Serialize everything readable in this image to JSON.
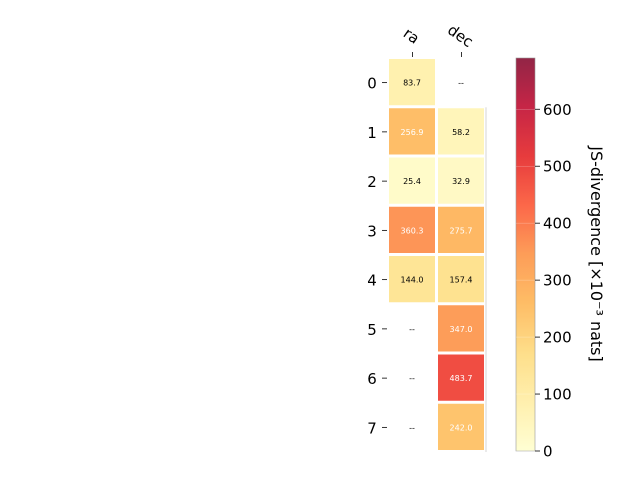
{
  "chart_data": {
    "type": "heatmap",
    "columns": [
      "ra",
      "dec"
    ],
    "rows": [
      "0",
      "1",
      "2",
      "3",
      "4",
      "5",
      "6",
      "7"
    ],
    "values": [
      [
        83.7,
        null
      ],
      [
        256.9,
        58.2
      ],
      [
        25.4,
        32.9
      ],
      [
        360.3,
        275.7
      ],
      [
        144.0,
        157.4
      ],
      [
        null,
        347.0
      ],
      [
        null,
        483.7
      ],
      [
        null,
        242.0
      ]
    ],
    "cell_labels": [
      [
        "83.7",
        "--"
      ],
      [
        "256.9",
        "58.2"
      ],
      [
        "25.4",
        "32.9"
      ],
      [
        "360.3",
        "275.7"
      ],
      [
        "144.0",
        "157.4"
      ],
      [
        "--",
        "347.0"
      ],
      [
        "--",
        "483.7"
      ],
      [
        "--",
        "242.0"
      ]
    ],
    "colorbar": {
      "label": "JS-divergence [×10⁻³ nats]",
      "range": [
        0,
        690
      ],
      "ticks": [
        0,
        100,
        200,
        300,
        400,
        500,
        600
      ],
      "colormap": "YlOrRd"
    }
  }
}
